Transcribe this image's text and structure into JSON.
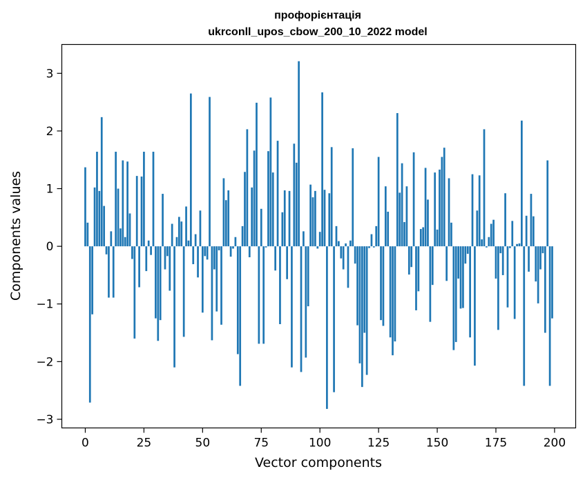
{
  "chart_data": {
    "type": "bar",
    "title": "профорієнтація",
    "subtitle": "ukrconll_upos_cbow_200_10_2022 model",
    "xlabel": "Vector components",
    "ylabel": "Components values",
    "xlim": [
      -10,
      209
    ],
    "ylim": [
      -3.15,
      3.5
    ],
    "grid": false,
    "legend": "none",
    "bar_color": "#1f77b4",
    "x_ticks": [
      0,
      25,
      50,
      75,
      100,
      125,
      150,
      175,
      200
    ],
    "x_tick_labels": [
      "0",
      "25",
      "50",
      "75",
      "100",
      "125",
      "150",
      "175",
      "200"
    ],
    "y_ticks": [
      -3,
      -2,
      -1,
      0,
      1,
      2,
      3
    ],
    "y_tick_labels": [
      "−3",
      "−2",
      "−1",
      "0",
      "1",
      "2",
      "3"
    ],
    "x": [
      0,
      1,
      2,
      3,
      4,
      5,
      6,
      7,
      8,
      9,
      10,
      11,
      12,
      13,
      14,
      15,
      16,
      17,
      18,
      19,
      20,
      21,
      22,
      23,
      24,
      25,
      26,
      27,
      28,
      29,
      30,
      31,
      32,
      33,
      34,
      35,
      36,
      37,
      38,
      39,
      40,
      41,
      42,
      43,
      44,
      45,
      46,
      47,
      48,
      49,
      50,
      51,
      52,
      53,
      54,
      55,
      56,
      57,
      58,
      59,
      60,
      61,
      62,
      63,
      64,
      65,
      66,
      67,
      68,
      69,
      70,
      71,
      72,
      73,
      74,
      75,
      76,
      77,
      78,
      79,
      80,
      81,
      82,
      83,
      84,
      85,
      86,
      87,
      88,
      89,
      90,
      91,
      92,
      93,
      94,
      95,
      96,
      97,
      98,
      99,
      100,
      101,
      102,
      103,
      104,
      105,
      106,
      107,
      108,
      109,
      110,
      111,
      112,
      113,
      114,
      115,
      116,
      117,
      118,
      119,
      120,
      121,
      122,
      123,
      124,
      125,
      126,
      127,
      128,
      129,
      130,
      131,
      132,
      133,
      134,
      135,
      136,
      137,
      138,
      139,
      140,
      141,
      142,
      143,
      144,
      145,
      146,
      147,
      148,
      149,
      150,
      151,
      152,
      153,
      154,
      155,
      156,
      157,
      158,
      159,
      160,
      161,
      162,
      163,
      164,
      165,
      166,
      167,
      168,
      169,
      170,
      171,
      172,
      173,
      174,
      175,
      176,
      177,
      178,
      179,
      180,
      181,
      182,
      183,
      184,
      185,
      186,
      187,
      188,
      189,
      190,
      191,
      192,
      193,
      194,
      195,
      196,
      197,
      198,
      199
    ],
    "values": [
      1.37,
      0.41,
      -2.71,
      -1.18,
      1.02,
      1.64,
      0.96,
      2.24,
      0.7,
      -0.14,
      -0.89,
      0.26,
      -0.89,
      1.64,
      1.0,
      0.31,
      1.49,
      0.16,
      1.47,
      0.57,
      -0.22,
      -1.6,
      1.22,
      -0.71,
      1.21,
      1.64,
      -0.43,
      0.1,
      -0.15,
      1.64,
      -1.25,
      -1.64,
      -1.28,
      0.91,
      -0.4,
      -0.17,
      -0.77,
      0.39,
      -2.1,
      0.16,
      0.51,
      0.43,
      -1.57,
      0.69,
      0.1,
      2.65,
      -0.31,
      0.21,
      -0.54,
      0.62,
      -1.15,
      -0.17,
      -0.23,
      2.59,
      -1.63,
      -0.4,
      -1.13,
      -0.07,
      -1.36,
      1.18,
      0.8,
      0.97,
      -0.18,
      -0.04,
      0.16,
      -1.87,
      -2.42,
      0.35,
      1.29,
      2.03,
      -0.19,
      1.02,
      1.66,
      2.49,
      -1.69,
      0.65,
      -1.69,
      -0.02,
      1.65,
      2.58,
      1.28,
      -0.42,
      1.83,
      -1.35,
      0.59,
      0.97,
      -0.57,
      0.96,
      -2.1,
      1.78,
      1.45,
      3.21,
      -2.18,
      0.26,
      -1.93,
      -1.04,
      1.07,
      0.85,
      0.96,
      -0.04,
      0.25,
      2.67,
      0.98,
      -2.82,
      0.92,
      1.72,
      -2.53,
      0.35,
      0.09,
      -0.21,
      -0.4,
      0.05,
      -0.72,
      0.1,
      1.7,
      -0.3,
      -1.37,
      -2.03,
      -2.44,
      -1.5,
      -2.23,
      -0.03,
      0.21,
      -0.02,
      0.35,
      1.55,
      -1.28,
      -1.38,
      1.04,
      0.6,
      -1.58,
      -1.89,
      -1.65,
      2.31,
      0.93,
      1.44,
      0.42,
      1.04,
      -0.49,
      -0.36,
      1.63,
      -1.11,
      -0.78,
      0.3,
      0.33,
      1.36,
      0.81,
      -1.31,
      -0.67,
      1.28,
      0.29,
      1.33,
      1.55,
      1.71,
      -0.6,
      1.18,
      0.41,
      -1.8,
      -1.66,
      -0.56,
      -1.08,
      -1.07,
      -0.3,
      -0.13,
      -1.58,
      1.25,
      -2.07,
      0.62,
      1.23,
      0.12,
      2.03,
      -0.02,
      0.16,
      0.39,
      0.46,
      -0.56,
      -1.45,
      -0.12,
      -0.5,
      0.92,
      -1.06,
      -0.03,
      0.44,
      -1.26,
      0.04,
      0.05,
      2.18,
      -2.42,
      0.53,
      -0.44,
      0.91,
      0.52,
      -0.61,
      -0.99,
      -0.4,
      -0.12,
      -1.5,
      1.49,
      -2.42,
      -1.25
    ]
  }
}
